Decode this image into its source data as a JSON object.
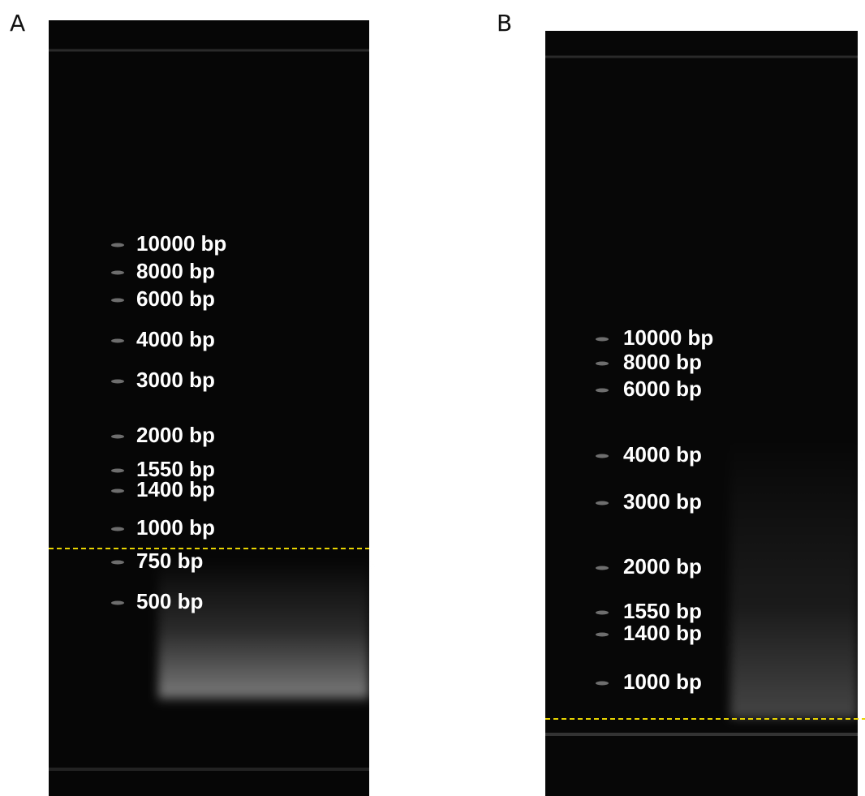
{
  "panels": [
    {
      "label": "A",
      "ladder": [
        "10000 bp",
        "8000 bp",
        "6000 bp",
        "4000 bp",
        "3000 bp",
        "2000 bp",
        "1550 bp",
        "1400 bp",
        "1000 bp",
        "750 bp",
        "500 bp"
      ]
    },
    {
      "label": "B",
      "ladder": [
        "10000 bp",
        "8000 bp",
        "6000 bp",
        "4000 bp",
        "3000 bp",
        "2000 bp",
        "1550 bp",
        "1400 bp",
        "1000 bp"
      ]
    }
  ]
}
